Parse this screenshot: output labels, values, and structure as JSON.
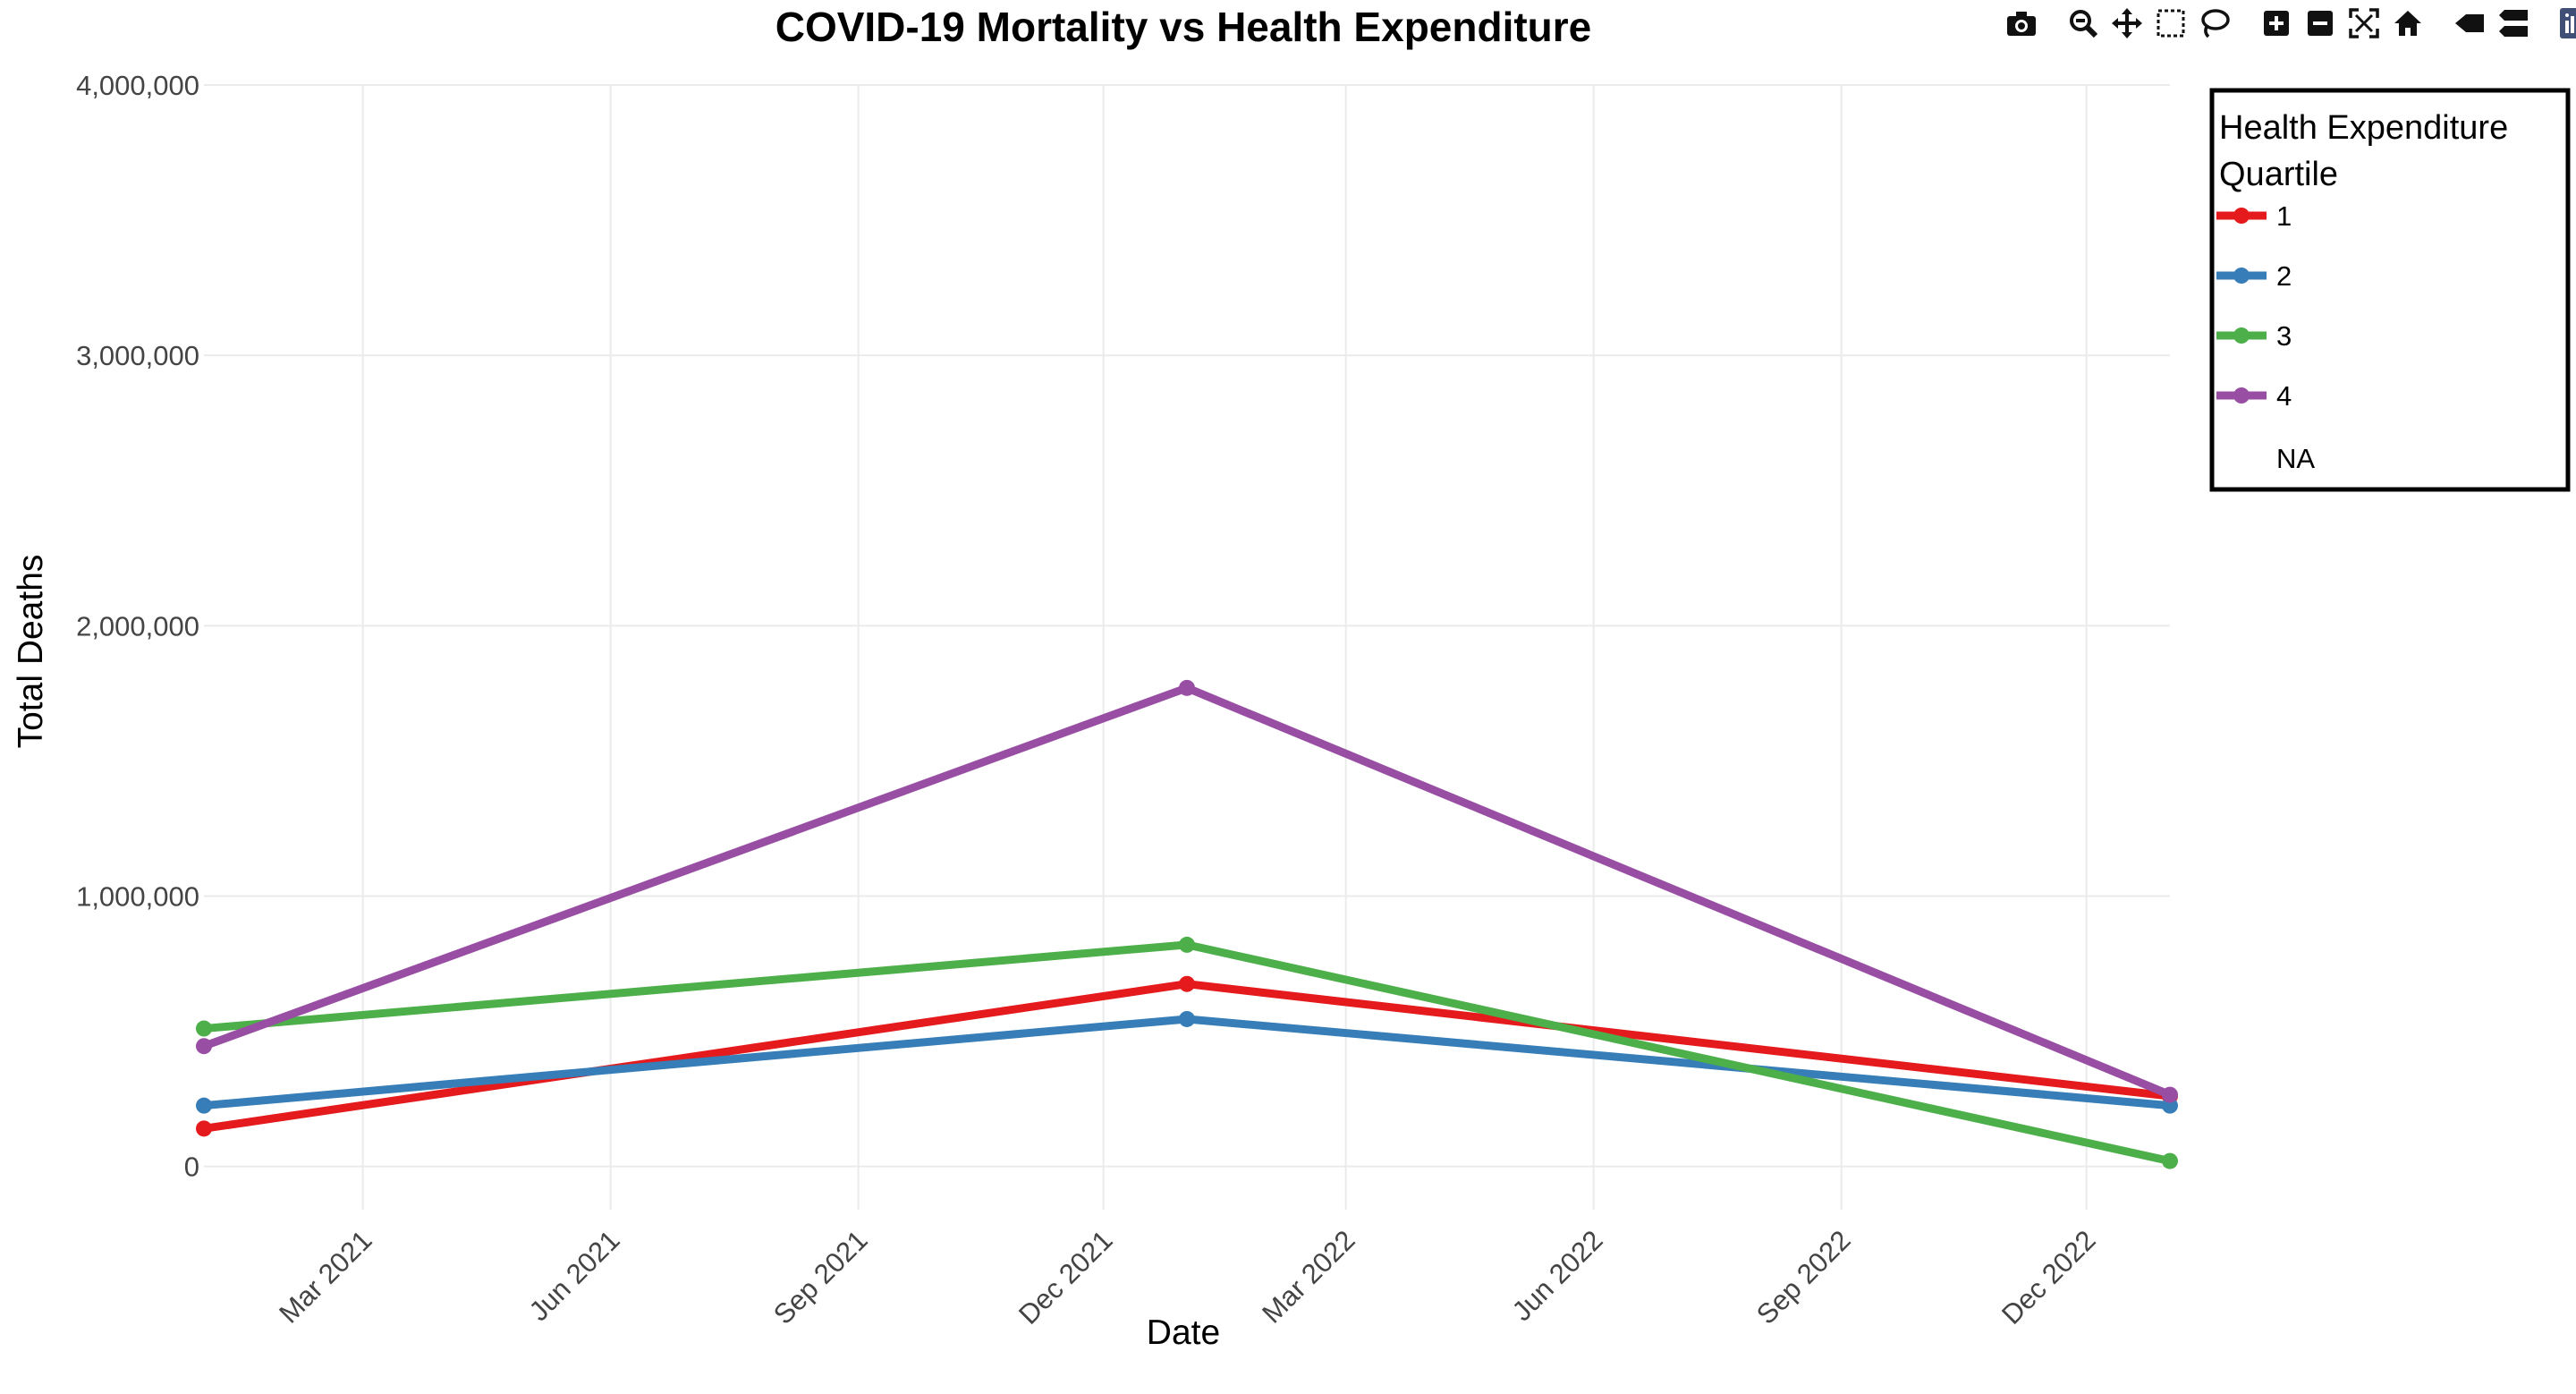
{
  "chart_data": {
    "type": "line",
    "title": "COVID-19 Mortality vs Health Expenditure",
    "xlabel": "Date",
    "ylabel": "Total Deaths",
    "ylim": [
      -160000,
      4000000
    ],
    "xlim": [
      "2021-01-01",
      "2023-01-01"
    ],
    "y_ticks": [
      {
        "value": 0,
        "label": "0"
      },
      {
        "value": 1000000,
        "label": "1,000,000"
      },
      {
        "value": 2000000,
        "label": "2,000,000"
      },
      {
        "value": 3000000,
        "label": "3,000,000"
      },
      {
        "value": 4000000,
        "label": "4,000,000"
      }
    ],
    "x_ticks": [
      {
        "date": "2021-03-01",
        "label": "Mar 2021"
      },
      {
        "date": "2021-06-01",
        "label": "Jun 2021"
      },
      {
        "date": "2021-09-01",
        "label": "Sep 2021"
      },
      {
        "date": "2021-12-01",
        "label": "Dec 2021"
      },
      {
        "date": "2022-03-01",
        "label": "Mar 2022"
      },
      {
        "date": "2022-06-01",
        "label": "Jun 2022"
      },
      {
        "date": "2022-09-01",
        "label": "Sep 2022"
      },
      {
        "date": "2022-12-01",
        "label": "Dec 2022"
      }
    ],
    "x": [
      "2021-01-01",
      "2022-01-01",
      "2023-01-01"
    ],
    "grid": true,
    "legend": {
      "title": "Health Expenditure Quartile",
      "title_lines": [
        "Health Expenditure",
        "Quartile"
      ],
      "placement": "right",
      "entries": [
        "1",
        "2",
        "3",
        "4",
        "NA"
      ]
    },
    "series": [
      {
        "name": "1",
        "color": "#e41a1c",
        "values": [
          140000,
          675000,
          260000
        ]
      },
      {
        "name": "2",
        "color": "#377eb8",
        "values": [
          225000,
          545000,
          225000
        ]
      },
      {
        "name": "3",
        "color": "#4daf4a",
        "values": [
          510000,
          820000,
          20000
        ]
      },
      {
        "name": "4",
        "color": "#984ea3",
        "values": [
          445000,
          1770000,
          265000
        ]
      }
    ]
  },
  "modebar": {
    "buttons": [
      "camera-icon",
      "zoom-icon",
      "pan-icon",
      "box-select-icon",
      "lasso-select-icon",
      "zoom-in-icon",
      "zoom-out-icon",
      "autoscale-icon",
      "reset-axes-icon",
      "spike-lines-icon",
      "hover-compare-icon",
      "plotly-logo-icon"
    ]
  }
}
